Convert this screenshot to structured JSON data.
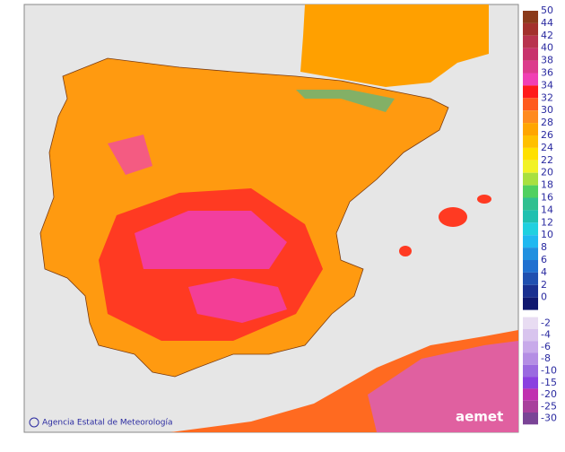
{
  "map": {
    "credit": "Agencia Estatal de Meteorología",
    "logo": "aemet",
    "legend": [
      {
        "value": 50,
        "color": "#8b3a1a"
      },
      {
        "value": 44,
        "color": "#a3302c"
      },
      {
        "value": 42,
        "color": "#b8334e"
      },
      {
        "value": 40,
        "color": "#c8336c"
      },
      {
        "value": 38,
        "color": "#dc3c8c"
      },
      {
        "value": 36,
        "color": "#f040b4"
      },
      {
        "value": 34,
        "color": "#ff1a1a"
      },
      {
        "value": 32,
        "color": "#ff5a1e"
      },
      {
        "value": 30,
        "color": "#ff8a1e"
      },
      {
        "value": 28,
        "color": "#ffa500"
      },
      {
        "value": 26,
        "color": "#ffc000"
      },
      {
        "value": 24,
        "color": "#ffe000"
      },
      {
        "value": 22,
        "color": "#f2f226"
      },
      {
        "value": 20,
        "color": "#a8e040"
      },
      {
        "value": 18,
        "color": "#50d060"
      },
      {
        "value": 16,
        "color": "#30c090"
      },
      {
        "value": 14,
        "color": "#20c0b0"
      },
      {
        "value": 12,
        "color": "#20d0e0"
      },
      {
        "value": 10,
        "color": "#20b8f0"
      },
      {
        "value": 8,
        "color": "#2090e0"
      },
      {
        "value": 6,
        "color": "#2070d0"
      },
      {
        "value": 4,
        "color": "#2050b0"
      },
      {
        "value": 2,
        "color": "#1a3090"
      },
      {
        "value": 0,
        "color": "#101870"
      },
      {
        "value": -2,
        "color": "#e8dcf2"
      },
      {
        "value": -4,
        "color": "#d8c4ee"
      },
      {
        "value": -6,
        "color": "#c8aaea"
      },
      {
        "value": -8,
        "color": "#b48ee4"
      },
      {
        "value": -10,
        "color": "#9a6ae0"
      },
      {
        "value": -15,
        "color": "#8a40e0"
      },
      {
        "value": -20,
        "color": "#c030b0"
      },
      {
        "value": -25,
        "color": "#a8409c"
      },
      {
        "value": -30,
        "color": "#7a4496"
      }
    ]
  }
}
